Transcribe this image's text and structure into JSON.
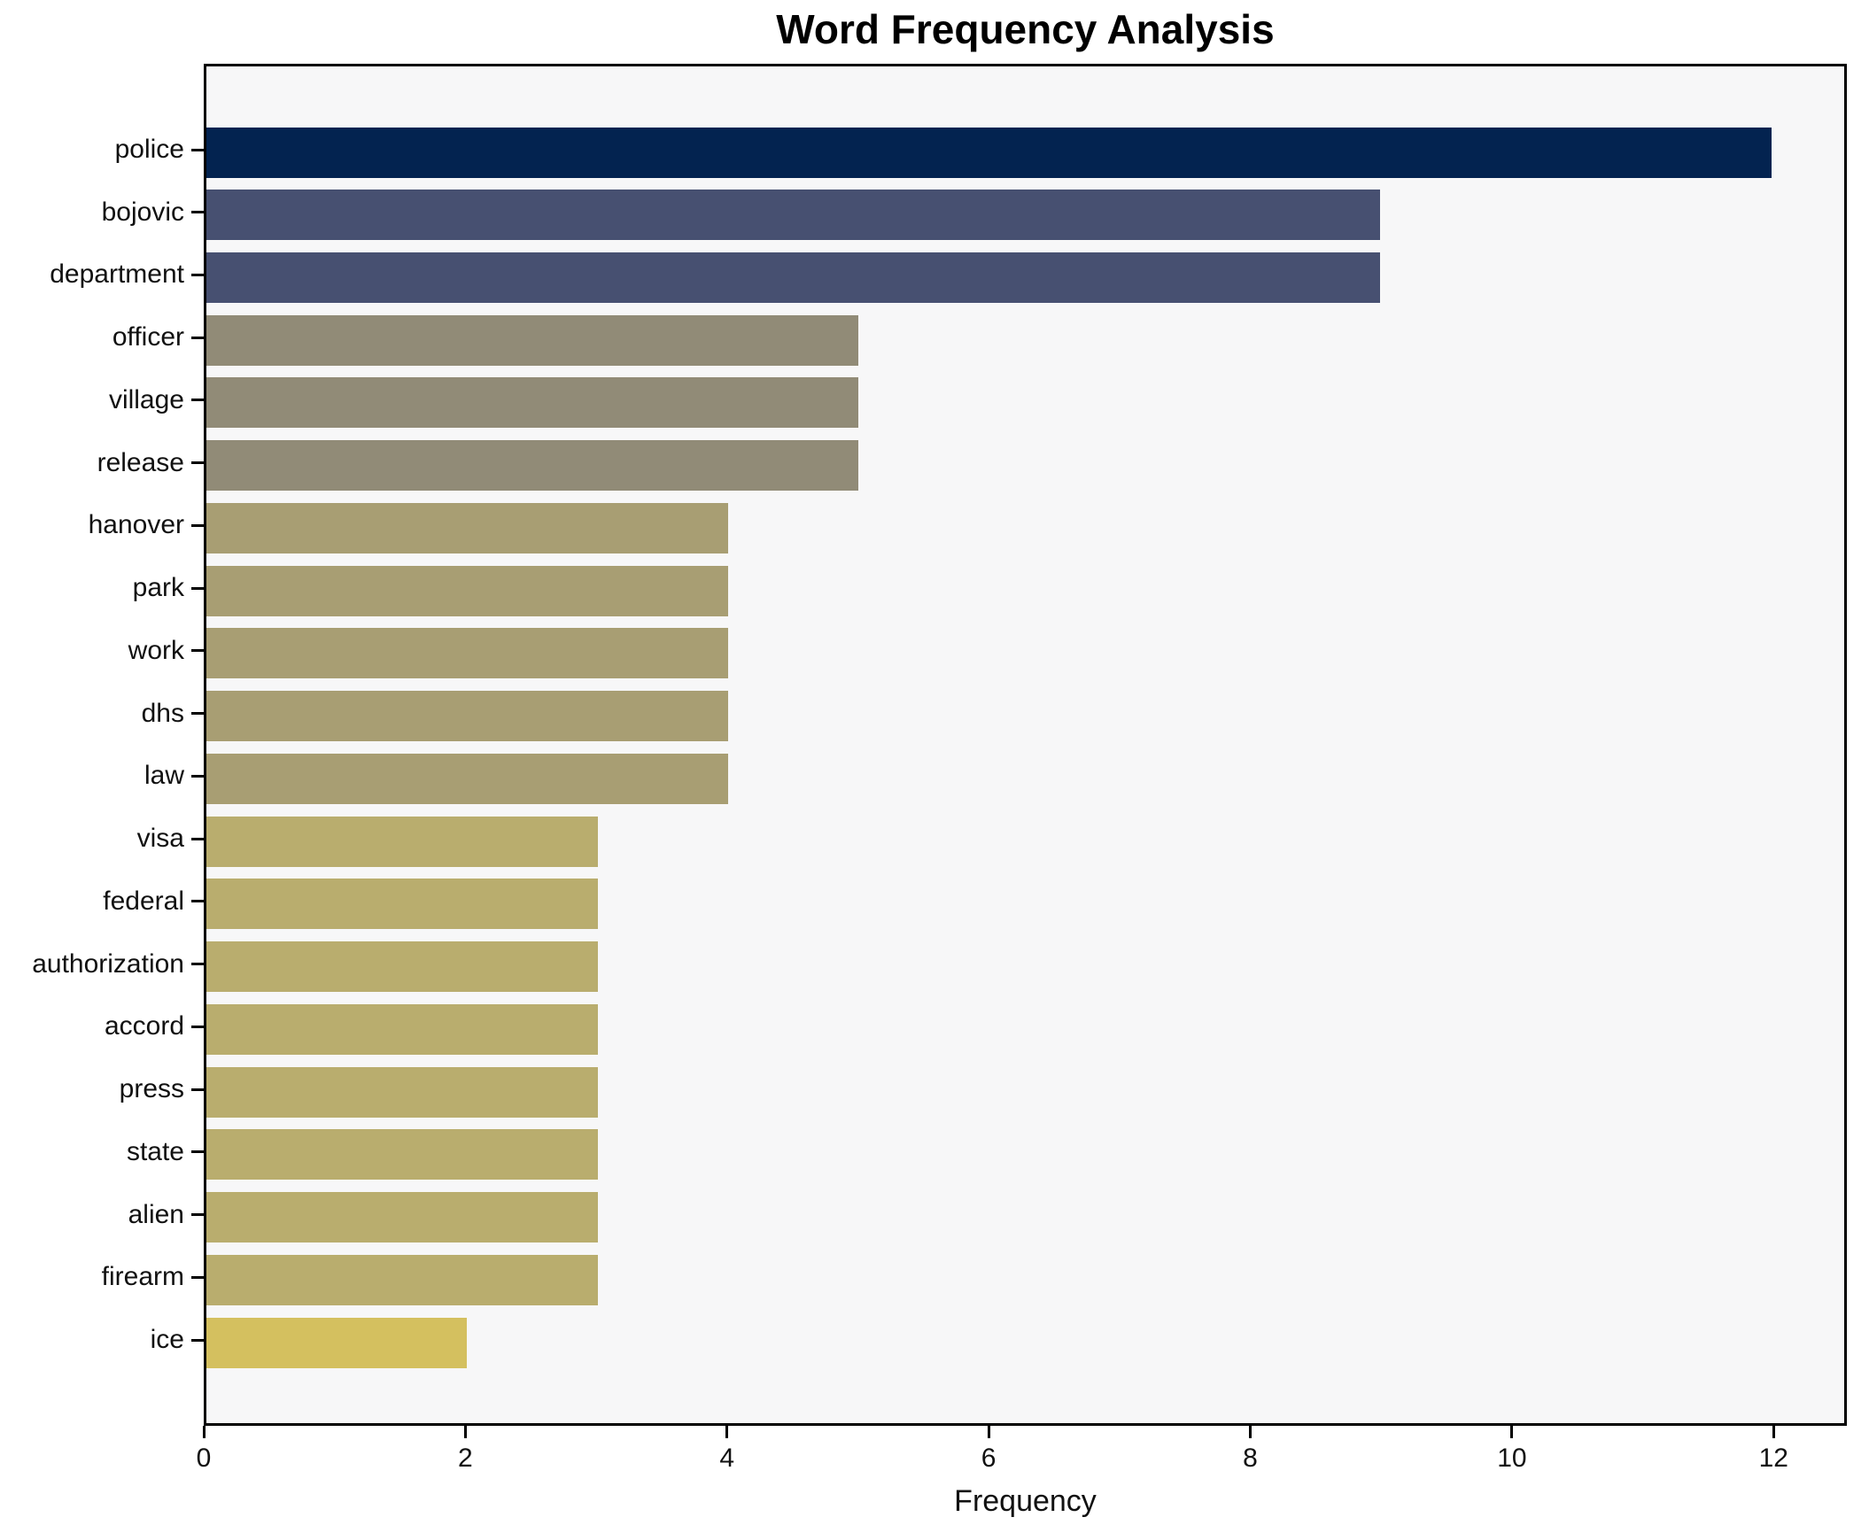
{
  "chart_data": {
    "type": "bar",
    "orientation": "horizontal",
    "title": "Word Frequency Analysis",
    "xlabel": "Frequency",
    "ylabel": "",
    "categories": [
      "police",
      "bojovic",
      "department",
      "officer",
      "village",
      "release",
      "hanover",
      "park",
      "work",
      "dhs",
      "law",
      "visa",
      "federal",
      "authorization",
      "accord",
      "press",
      "state",
      "alien",
      "firearm",
      "ice"
    ],
    "values": [
      12,
      9,
      9,
      5,
      5,
      5,
      4,
      4,
      4,
      4,
      4,
      3,
      3,
      3,
      3,
      3,
      3,
      3,
      3,
      2
    ],
    "bar_colors": [
      "#032350",
      "#475071",
      "#475071",
      "#918b77",
      "#918b77",
      "#918b77",
      "#a89e73",
      "#a89e73",
      "#a89e73",
      "#a89e73",
      "#a89e73",
      "#b9ad6e",
      "#b9ad6e",
      "#b9ad6e",
      "#b9ad6e",
      "#b9ad6e",
      "#b9ad6e",
      "#b9ad6e",
      "#b9ad6e",
      "#d4c05f"
    ],
    "xlim": [
      0,
      12.56
    ],
    "xticks": [
      0,
      2,
      4,
      6,
      8,
      10,
      12
    ],
    "grid": false,
    "legend": false,
    "plot_background": "#f7f7f8",
    "figure_background": "#ffffff",
    "spine_color": "#000000"
  }
}
